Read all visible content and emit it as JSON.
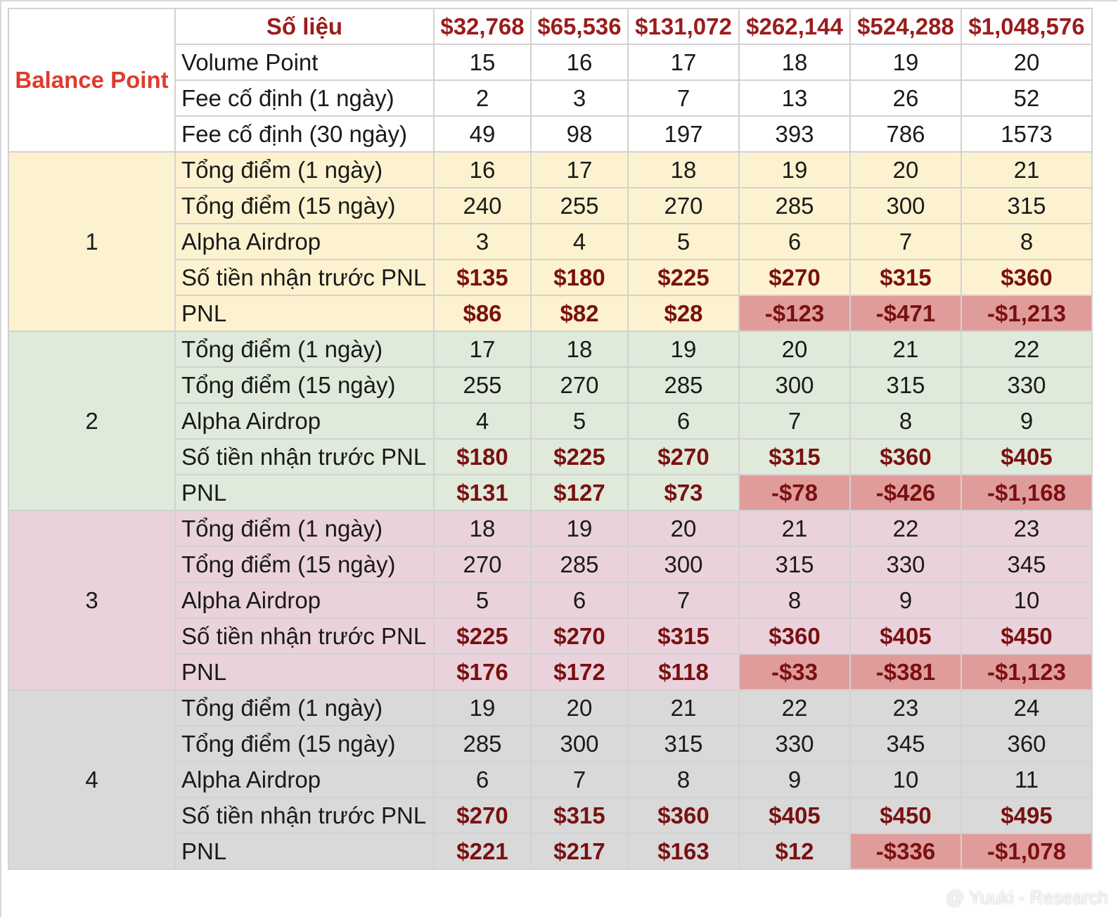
{
  "sheet": {
    "corner_label": "Balance Point",
    "header_label": "Số liệu",
    "columns": [
      "$32,768",
      "$65,536",
      "$131,072",
      "$262,144",
      "$524,288",
      "$1,048,576"
    ],
    "top_rows": [
      {
        "label": "Volume Point",
        "values": [
          "15",
          "16",
          "17",
          "18",
          "19",
          "20"
        ]
      },
      {
        "label": "Fee cố định (1 ngày)",
        "values": [
          "2",
          "3",
          "7",
          "13",
          "26",
          "52"
        ]
      },
      {
        "label": "Fee cố định (30 ngày)",
        "values": [
          "49",
          "98",
          "197",
          "393",
          "786",
          "1573"
        ]
      }
    ],
    "groups": [
      {
        "id": "1",
        "rows": [
          {
            "label": "Tổng điểm (1 ngày)",
            "values": [
              "16",
              "17",
              "18",
              "19",
              "20",
              "21"
            ]
          },
          {
            "label": "Tổng điểm (15 ngày)",
            "values": [
              "240",
              "255",
              "270",
              "285",
              "300",
              "315"
            ]
          },
          {
            "label": "Alpha Airdrop",
            "values": [
              "3",
              "4",
              "5",
              "6",
              "7",
              "8"
            ]
          },
          {
            "label": "Số tiền nhận trước PNL",
            "values": [
              "$135",
              "$180",
              "$225",
              "$270",
              "$315",
              "$360"
            ]
          },
          {
            "label": "PNL",
            "values": [
              "$86",
              "$82",
              "$28",
              "-$123",
              "-$471",
              "-$1,213"
            ]
          }
        ]
      },
      {
        "id": "2",
        "rows": [
          {
            "label": "Tổng điểm (1 ngày)",
            "values": [
              "17",
              "18",
              "19",
              "20",
              "21",
              "22"
            ]
          },
          {
            "label": "Tổng điểm (15 ngày)",
            "values": [
              "255",
              "270",
              "285",
              "300",
              "315",
              "330"
            ]
          },
          {
            "label": "Alpha Airdrop",
            "values": [
              "4",
              "5",
              "6",
              "7",
              "8",
              "9"
            ]
          },
          {
            "label": "Số tiền nhận trước PNL",
            "values": [
              "$180",
              "$225",
              "$270",
              "$315",
              "$360",
              "$405"
            ]
          },
          {
            "label": "PNL",
            "values": [
              "$131",
              "$127",
              "$73",
              "-$78",
              "-$426",
              "-$1,168"
            ]
          }
        ]
      },
      {
        "id": "3",
        "rows": [
          {
            "label": "Tổng điểm (1 ngày)",
            "values": [
              "18",
              "19",
              "20",
              "21",
              "22",
              "23"
            ]
          },
          {
            "label": "Tổng điểm (15 ngày)",
            "values": [
              "270",
              "285",
              "300",
              "315",
              "330",
              "345"
            ]
          },
          {
            "label": "Alpha Airdrop",
            "values": [
              "5",
              "6",
              "7",
              "8",
              "9",
              "10"
            ]
          },
          {
            "label": "Số tiền nhận trước PNL",
            "values": [
              "$225",
              "$270",
              "$315",
              "$360",
              "$405",
              "$450"
            ]
          },
          {
            "label": "PNL",
            "values": [
              "$176",
              "$172",
              "$118",
              "-$33",
              "-$381",
              "-$1,123"
            ]
          }
        ]
      },
      {
        "id": "4",
        "rows": [
          {
            "label": "Tổng điểm (1 ngày)",
            "values": [
              "19",
              "20",
              "21",
              "22",
              "23",
              "24"
            ]
          },
          {
            "label": "Tổng điểm (15 ngày)",
            "values": [
              "285",
              "300",
              "315",
              "330",
              "345",
              "360"
            ]
          },
          {
            "label": "Alpha Airdrop",
            "values": [
              "6",
              "7",
              "8",
              "9",
              "10",
              "11"
            ]
          },
          {
            "label": "Số tiền nhận trước PNL",
            "values": [
              "$270",
              "$315",
              "$360",
              "$405",
              "$450",
              "$495"
            ]
          },
          {
            "label": "PNL",
            "values": [
              "$221",
              "$217",
              "$163",
              "$12",
              "-$336",
              "-$1,078"
            ]
          }
        ]
      }
    ]
  },
  "colors": {
    "group_1": "#fdf2cf",
    "group_2": "#dfeadb",
    "group_3": "#ead2dc",
    "group_4": "#d9d9d9",
    "negative_highlight": "#e09c9b",
    "money_text": "#7a1010",
    "header_text": "#9b1c1c",
    "corner_text": "#e03a2e"
  },
  "watermark": {
    "text": "@ Yuuki - Research",
    "icon": "diamond-logo-icon"
  }
}
